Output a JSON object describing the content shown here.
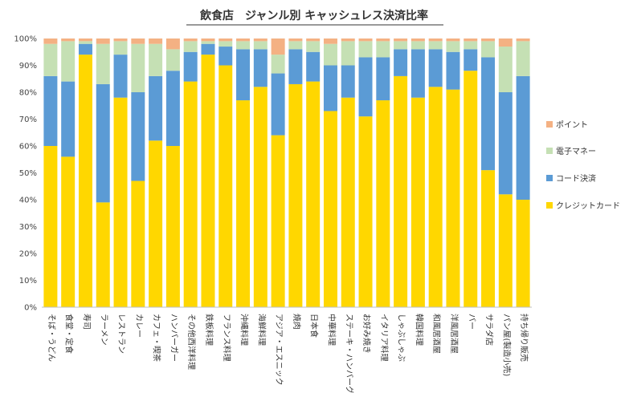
{
  "chart_data": {
    "type": "bar",
    "stacked": true,
    "title": "飲食店　ジャンル別 キャッシュレス決済比率",
    "xlabel": "",
    "ylabel": "",
    "ylim": [
      0,
      100
    ],
    "yticks": [
      "0%",
      "10%",
      "20%",
      "30%",
      "40%",
      "50%",
      "60%",
      "70%",
      "80%",
      "90%",
      "100%"
    ],
    "grid": false,
    "legend_position": "right",
    "categories": [
      "そば・うどん",
      "食堂・定食",
      "寿司",
      "ラーメン",
      "レストラン",
      "カレー",
      "カフェ・喫茶",
      "ハンバーガー",
      "その他西洋料理",
      "鉄板料理",
      "フランス料理",
      "沖縄料理",
      "海鮮料理",
      "アジア・エスニック",
      "焼肉",
      "日本食",
      "中華料理",
      "ステーキ・ハンバーグ",
      "お好み焼き",
      "イタリア料理",
      "しゃぶしゃぶ",
      "韓国料理",
      "和風居酒屋",
      "洋風居酒屋",
      "バー",
      "サラダ店",
      "パン屋(製造小売)",
      "持ち帰り販売"
    ],
    "series": [
      {
        "name": "クレジットカード",
        "color": "#FFD700",
        "values": [
          60,
          56,
          94,
          39,
          78,
          47,
          62,
          60,
          84,
          94,
          90,
          77,
          82,
          64,
          83,
          84,
          73,
          78,
          71,
          77,
          86,
          78,
          82,
          81,
          88,
          51,
          42,
          40
        ]
      },
      {
        "name": "コード決済",
        "color": "#5B9BD5",
        "values": [
          26,
          28,
          4,
          44,
          16,
          33,
          24,
          28,
          11,
          4,
          7,
          19,
          14,
          23,
          13,
          11,
          17,
          12,
          22,
          16,
          10,
          18,
          14,
          14,
          8,
          42,
          38,
          46
        ]
      },
      {
        "name": "電子マネー",
        "color": "#C5E0B4",
        "values": [
          12,
          15,
          1,
          15,
          5,
          18,
          12,
          8,
          4,
          1,
          2,
          3,
          3,
          7,
          3,
          4,
          8,
          9,
          6,
          6,
          3,
          3,
          3,
          4,
          3,
          6,
          17,
          13
        ]
      },
      {
        "name": "ポイント",
        "color": "#F4B183",
        "values": [
          2,
          1,
          1,
          2,
          1,
          2,
          2,
          4,
          1,
          1,
          1,
          1,
          1,
          6,
          1,
          1,
          2,
          1,
          1,
          1,
          1,
          1,
          1,
          1,
          1,
          1,
          3,
          1
        ]
      }
    ],
    "legend_order": [
      "ポイント",
      "電子マネー",
      "コード決済",
      "クレジットカード"
    ]
  }
}
